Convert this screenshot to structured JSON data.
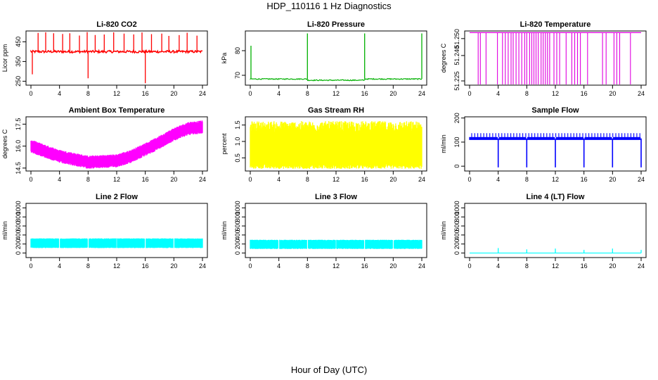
{
  "page_title": "HDP_110116  1 Hz Diagnostics",
  "xlabel": "Hour of Day (UTC)",
  "chart_data": [
    {
      "type": "line",
      "title": "Li-820 CO2",
      "ylabel": "Licor ppm",
      "color": "#ff0000",
      "xlim": [
        0,
        24
      ],
      "ylim": [
        230,
        505
      ],
      "xticks": [
        0,
        4,
        8,
        12,
        16,
        20,
        24
      ],
      "yticks": [
        250,
        350,
        450
      ],
      "pattern": "co2",
      "baseline": 400,
      "spike_high": 500,
      "dips": [
        {
          "x": 8,
          "y": 265
        },
        {
          "x": 16,
          "y": 240
        },
        {
          "x": 0.2,
          "y": 285
        }
      ]
    },
    {
      "type": "line",
      "title": "Li-820 Pressure",
      "ylabel": "kPa",
      "color": "#00b000",
      "xlim": [
        0,
        24
      ],
      "ylim": [
        66,
        88
      ],
      "xticks": [
        0,
        4,
        8,
        12,
        16,
        20,
        24
      ],
      "yticks": [
        70,
        80
      ],
      "pattern": "pressure",
      "baseline": 68.5,
      "spikes": [
        {
          "x": 0.1,
          "y": 82
        },
        {
          "x": 8,
          "y": 87
        },
        {
          "x": 16,
          "y": 87
        },
        {
          "x": 24,
          "y": 87
        }
      ]
    },
    {
      "type": "line",
      "title": "Li-820 Temperature",
      "ylabel": "degrees C",
      "color": "#e000e0",
      "xlim": [
        0,
        24
      ],
      "ylim": [
        51.2225,
        51.2545
      ],
      "xticks": [
        0,
        4,
        8,
        12,
        16,
        20,
        24
      ],
      "yticks": [
        51.225,
        51.24,
        51.25
      ],
      "ytick_labels": [
        "51.225",
        "51.240",
        "51.250"
      ],
      "pattern": "temperature",
      "baseline": 51.2535,
      "low": 51.2225
    },
    {
      "type": "line",
      "title": "Ambient Box Temperature",
      "ylabel": "degrees C",
      "color": "#ff00ff",
      "xlim": [
        0,
        24
      ],
      "ylim": [
        14.3,
        18.0
      ],
      "xticks": [
        0,
        4,
        8,
        12,
        16,
        20,
        24
      ],
      "yticks": [
        14.5,
        16.0,
        17.5
      ],
      "ytick_labels": [
        "14.5",
        "16.0",
        "17.5"
      ],
      "pattern": "band",
      "x": [
        0,
        4,
        8,
        12,
        14,
        17,
        20,
        22,
        24
      ],
      "y": [
        16.0,
        15.3,
        14.9,
        15.0,
        15.3,
        16.0,
        16.8,
        17.2,
        17.3
      ],
      "halfwidth": 0.45
    },
    {
      "type": "line",
      "title": "Gas Stream RH",
      "ylabel": "percent",
      "color": "#ffff00",
      "xlim": [
        0,
        24
      ],
      "ylim": [
        0.1,
        1.75
      ],
      "xticks": [
        0,
        4,
        8,
        12,
        16,
        20,
        24
      ],
      "yticks": [
        0.5,
        1.0,
        1.5
      ],
      "ytick_labels": [
        "0.5",
        "1.0",
        "1.5"
      ],
      "pattern": "rh",
      "low": 0.3,
      "high": 1.35
    },
    {
      "type": "line",
      "title": "Sample Flow",
      "ylabel": "ml/min",
      "color": "#0000ff",
      "xlim": [
        0,
        24
      ],
      "ylim": [
        -20,
        205
      ],
      "xticks": [
        0,
        4,
        8,
        12,
        16,
        20,
        24
      ],
      "yticks": [
        0,
        100,
        200
      ],
      "pattern": "flow",
      "baseline": 115,
      "band": 12,
      "dips": [
        4,
        8,
        12,
        16,
        20,
        24
      ],
      "dip_level": -5
    },
    {
      "type": "line",
      "title": "Line 2 Flow",
      "ylabel": "ml/min",
      "color": "#00ffff",
      "xlim": [
        0,
        24
      ],
      "ylim": [
        -100,
        1100
      ],
      "xticks": [
        0,
        4,
        8,
        12,
        16,
        20,
        24
      ],
      "yticks": [
        0,
        200,
        400,
        600,
        800,
        1000
      ],
      "pattern": "lineflow",
      "low": 110,
      "high": 310,
      "gaps": [
        4,
        8,
        12,
        16,
        20
      ]
    },
    {
      "type": "line",
      "title": "Line 3 Flow",
      "ylabel": "ml/min",
      "color": "#00ffff",
      "xlim": [
        0,
        24
      ],
      "ylim": [
        -100,
        1100
      ],
      "xticks": [
        0,
        4,
        8,
        12,
        16,
        20,
        24
      ],
      "yticks": [
        0,
        200,
        400,
        600,
        800,
        1000
      ],
      "pattern": "lineflow",
      "low": 90,
      "high": 280,
      "gaps": [
        4,
        8,
        12,
        16,
        20
      ]
    },
    {
      "type": "line",
      "title": "Line 4 (LT) Flow",
      "ylabel": "ml/min",
      "color": "#00ffff",
      "xlim": [
        0,
        24
      ],
      "ylim": [
        -100,
        1100
      ],
      "xticks": [
        0,
        4,
        8,
        12,
        16,
        20,
        24
      ],
      "yticks": [
        0,
        200,
        400,
        600,
        800,
        1000
      ],
      "pattern": "line4",
      "baseline": 0,
      "spikes": [
        {
          "x": 4,
          "y": 110
        },
        {
          "x": 8,
          "y": 80
        },
        {
          "x": 12,
          "y": 100
        },
        {
          "x": 16,
          "y": 70
        },
        {
          "x": 20,
          "y": 100
        },
        {
          "x": 24,
          "y": 70
        }
      ]
    }
  ]
}
